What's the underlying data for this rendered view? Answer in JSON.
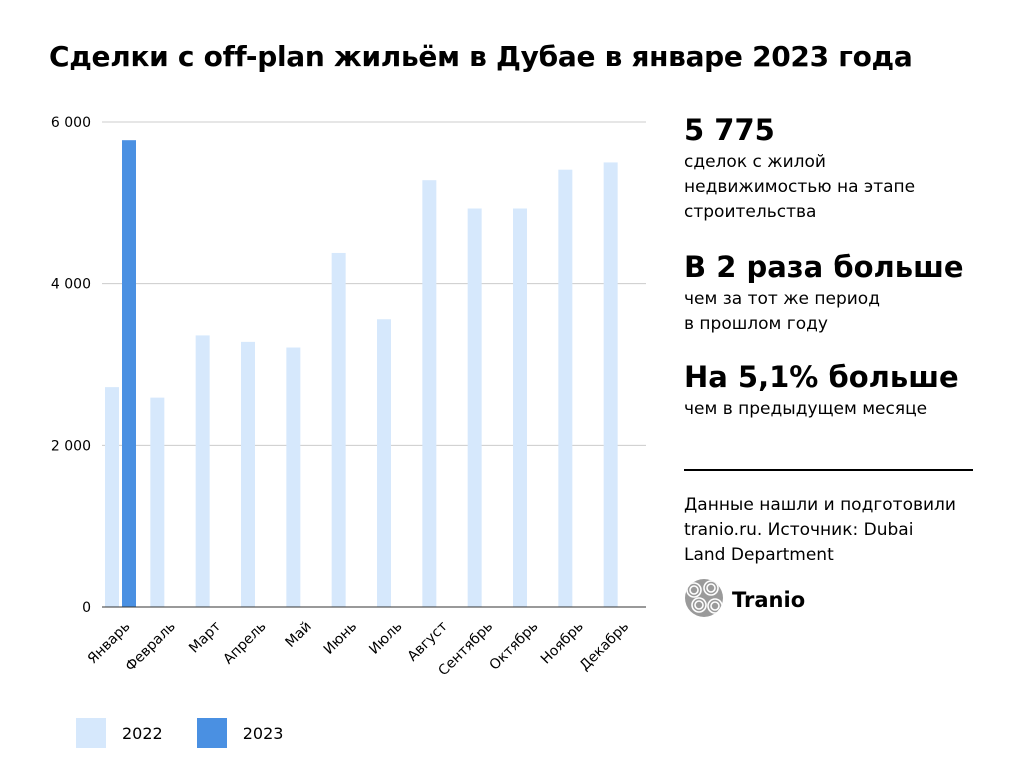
{
  "title": "Сделки с off-plan жильём в Дубае в январе 2023 года",
  "colors": {
    "series_2022": "#d6e8fc",
    "series_2023": "#4a90e2",
    "grid": "#cccccc",
    "axis": "#333333"
  },
  "chart_data": {
    "type": "bar",
    "categories": [
      "Январь",
      "Февраль",
      "Март",
      "Апрель",
      "Май",
      "Июнь",
      "Июль",
      "Август",
      "Сентябрь",
      "Октябрь",
      "Ноябрь",
      "Декабрь"
    ],
    "series": [
      {
        "name": "2022",
        "values": [
          2720,
          2590,
          3360,
          3280,
          3210,
          4380,
          3560,
          5280,
          4930,
          4930,
          5410,
          5500
        ]
      },
      {
        "name": "2023",
        "values": [
          5775,
          null,
          null,
          null,
          null,
          null,
          null,
          null,
          null,
          null,
          null,
          null
        ]
      }
    ],
    "ylim": [
      0,
      6000
    ],
    "yticks": [
      0,
      2000,
      4000,
      6000
    ],
    "ytick_labels": [
      "0",
      "2 000",
      "4 000",
      "6 000"
    ],
    "grid": true,
    "legend": "bottom-left",
    "xlabel": "",
    "ylabel": ""
  },
  "stats": [
    {
      "big": "5 775",
      "small": "сделок с жилой\nнедвижимостью на этапе\nстроительства"
    },
    {
      "big": "В 2 раза больше",
      "small": "чем за тот же период\nв прошлом году"
    },
    {
      "big": "На 5,1% больше",
      "small": "чем в предыдущем месяце"
    }
  ],
  "source": "Данные нашли и подготовили\ntranio.ru. Источник: Dubai\nLand Department",
  "brand": {
    "name": "Tranio",
    "icon": "tranio-logo-icon"
  }
}
